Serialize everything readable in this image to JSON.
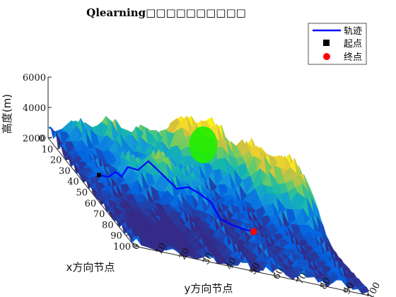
{
  "chart_data": {
    "type": "surface3d",
    "title": "Qlearning□□□□□□□□□□",
    "xlabel": "x方向节点",
    "ylabel": "y方向节点",
    "zlabel": "高度(m)",
    "x_ticks": [
      0,
      10,
      20,
      30,
      40,
      50,
      60,
      70,
      80,
      90,
      100
    ],
    "y_ticks": [
      0,
      10,
      20,
      30,
      40,
      50,
      60,
      70,
      80,
      90,
      100
    ],
    "z_ticks": [
      2000,
      4000,
      6000
    ],
    "xlim": [
      0,
      100
    ],
    "ylim": [
      0,
      100
    ],
    "zlim": [
      2000,
      6000
    ],
    "colormap": "parula",
    "legend": {
      "placement": "top-right",
      "entries": [
        {
          "label": "轨迹",
          "marker": "line",
          "color": "#0000ff"
        },
        {
          "label": "起点",
          "marker": "square",
          "color": "#000000"
        },
        {
          "label": "终点",
          "marker": "circle",
          "color": "#ff0000"
        }
      ]
    },
    "obstacle_color": "#22ee00",
    "trajectory": [
      [
        40,
        7
      ],
      [
        42,
        9
      ],
      [
        41,
        11
      ],
      [
        40,
        14
      ],
      [
        39,
        17
      ],
      [
        38,
        20
      ],
      [
        39,
        24
      ],
      [
        40,
        28
      ],
      [
        41,
        31
      ],
      [
        43,
        34
      ],
      [
        46,
        38
      ],
      [
        48,
        42
      ],
      [
        50,
        46
      ],
      [
        53,
        50
      ],
      [
        55,
        53
      ],
      [
        58,
        57
      ],
      [
        61,
        61
      ],
      [
        64,
        64
      ]
    ],
    "start": [
      40,
      7
    ],
    "goal": [
      64,
      64
    ]
  }
}
